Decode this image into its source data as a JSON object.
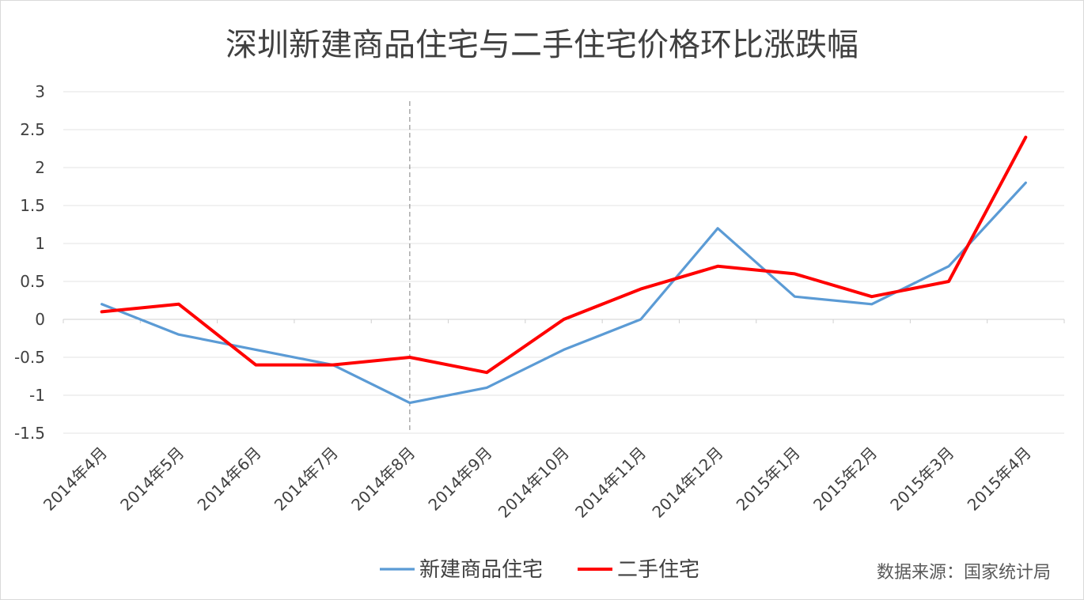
{
  "chart_data": {
    "type": "line",
    "title": "深圳新建商品住宅与二手住宅价格环比涨跌幅",
    "categories": [
      "2014年4月",
      "2014年5月",
      "2014年6月",
      "2014年7月",
      "2014年8月",
      "2014年9月",
      "2014年10月",
      "2014年11月",
      "2014年12月",
      "2015年1月",
      "2015年2月",
      "2015年3月",
      "2015年4月"
    ],
    "series": [
      {
        "name": "新建商品住宅",
        "color": "#5b9bd5",
        "values": [
          0.2,
          -0.2,
          -0.4,
          -0.6,
          -1.1,
          -0.9,
          -0.4,
          0.0,
          1.2,
          0.3,
          0.2,
          0.7,
          1.8
        ]
      },
      {
        "name": "二手住宅",
        "color": "#ff0000",
        "values": [
          0.1,
          0.2,
          -0.6,
          -0.6,
          -0.5,
          -0.7,
          0.0,
          0.4,
          0.7,
          0.6,
          0.3,
          0.5,
          2.4
        ]
      }
    ],
    "yticks": [
      "3",
      "2.5",
      "2",
      "1.5",
      "1",
      "0.5",
      "0",
      "-0.5",
      "-1",
      "-1.5"
    ],
    "ylim": [
      -1.5,
      3
    ],
    "grid": true,
    "vertical_marker_category": "2014年8月",
    "legend_position": "bottom",
    "source": "数据来源：国家统计局"
  }
}
